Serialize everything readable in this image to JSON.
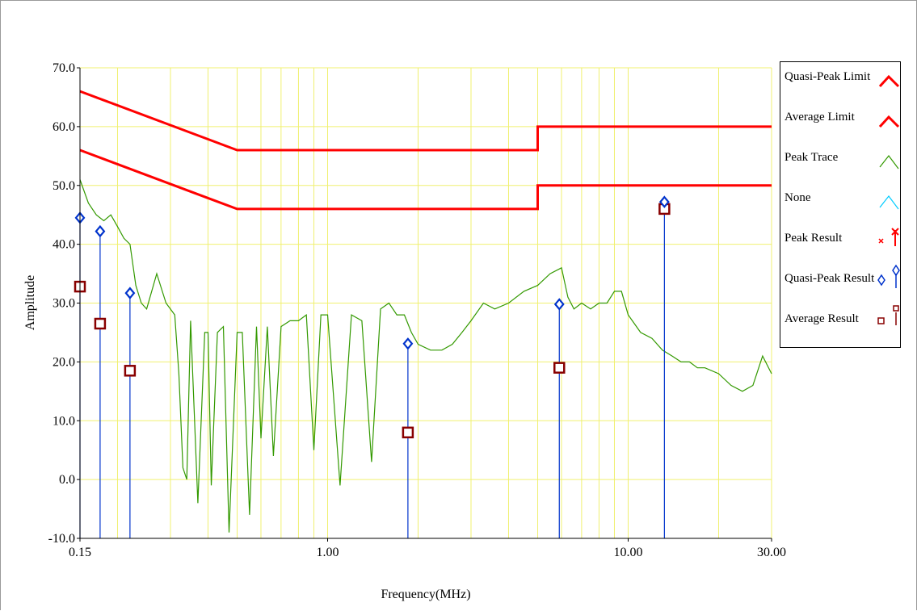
{
  "chart_data": {
    "type": "line",
    "xlabel": "Frequency(MHz)",
    "ylabel": "Amplitude",
    "x_scale": "log",
    "xlim": [
      0.15,
      30
    ],
    "ylim": [
      -10,
      70
    ],
    "x_ticks": [
      "0.15",
      "1.00",
      "10.00",
      "30.00"
    ],
    "y_ticks": [
      "70.0",
      "60.0",
      "50.0",
      "40.0",
      "30.0",
      "20.0",
      "10.0",
      "0.0",
      "-10.0"
    ],
    "grid": true,
    "legend_position": "right",
    "series": [
      {
        "name": "Quasi-Peak Limit",
        "color": "#ff0000",
        "x": [
          0.15,
          0.5,
          5,
          5,
          30
        ],
        "y": [
          66,
          56,
          56,
          60,
          60
        ]
      },
      {
        "name": "Average Limit",
        "color": "#ff0000",
        "x": [
          0.15,
          0.5,
          5,
          5,
          30
        ],
        "y": [
          56,
          46,
          46,
          50,
          50
        ]
      },
      {
        "name": "Peak Trace",
        "color": "#339900",
        "x": [
          0.15,
          0.16,
          0.17,
          0.18,
          0.19,
          0.2,
          0.21,
          0.22,
          0.23,
          0.24,
          0.25,
          0.27,
          0.29,
          0.31,
          0.32,
          0.33,
          0.34,
          0.35,
          0.37,
          0.39,
          0.4,
          0.41,
          0.43,
          0.45,
          0.47,
          0.5,
          0.52,
          0.55,
          0.58,
          0.6,
          0.63,
          0.66,
          0.7,
          0.75,
          0.8,
          0.85,
          0.9,
          0.95,
          1.0,
          1.1,
          1.2,
          1.3,
          1.4,
          1.5,
          1.6,
          1.7,
          1.8,
          1.9,
          2.0,
          2.2,
          2.4,
          2.6,
          2.8,
          3.0,
          3.3,
          3.6,
          4.0,
          4.5,
          5.0,
          5.5,
          6.0,
          6.3,
          6.6,
          7.0,
          7.5,
          8.0,
          8.5,
          9.0,
          9.5,
          10.0,
          11.0,
          12.0,
          13.0,
          14.0,
          15.0,
          16.0,
          17.0,
          18.0,
          20.0,
          22.0,
          24.0,
          26.0,
          28.0,
          30.0
        ],
        "y": [
          51,
          47,
          45,
          44,
          45,
          43,
          41,
          40,
          33,
          30,
          29,
          35,
          30,
          28,
          18,
          2,
          0,
          27,
          -4,
          25,
          25,
          -1,
          25,
          26,
          -9,
          25,
          25,
          -6,
          26,
          7,
          26,
          4,
          26,
          27,
          27,
          28,
          5,
          28,
          28,
          -1,
          28,
          27,
          3,
          29,
          30,
          28,
          28,
          25,
          23,
          22,
          22,
          23,
          25,
          27,
          30,
          29,
          30,
          32,
          33,
          35,
          36,
          31,
          29,
          30,
          29,
          30,
          30,
          32,
          32,
          28,
          25,
          24,
          22,
          21,
          20,
          20,
          19,
          19,
          18,
          16,
          15,
          16,
          21,
          18
        ]
      },
      {
        "name": "None",
        "color": "#00ccff",
        "x": [],
        "y": []
      },
      {
        "name": "Peak Result",
        "color": "#ff0000",
        "x": [],
        "y": []
      },
      {
        "name": "Quasi-Peak Result",
        "color": "#0033cc",
        "x": [
          0.15,
          0.175,
          0.22,
          1.85,
          5.9,
          13.2
        ],
        "y": [
          44.5,
          42.2,
          31.7,
          23.1,
          29.8,
          47.2
        ]
      },
      {
        "name": "Average Result",
        "color": "#880000",
        "x": [
          0.15,
          0.175,
          0.22,
          1.85,
          5.9,
          13.2
        ],
        "y": [
          32.8,
          26.5,
          18.5,
          8.0,
          19.0,
          46.0
        ]
      }
    ]
  }
}
